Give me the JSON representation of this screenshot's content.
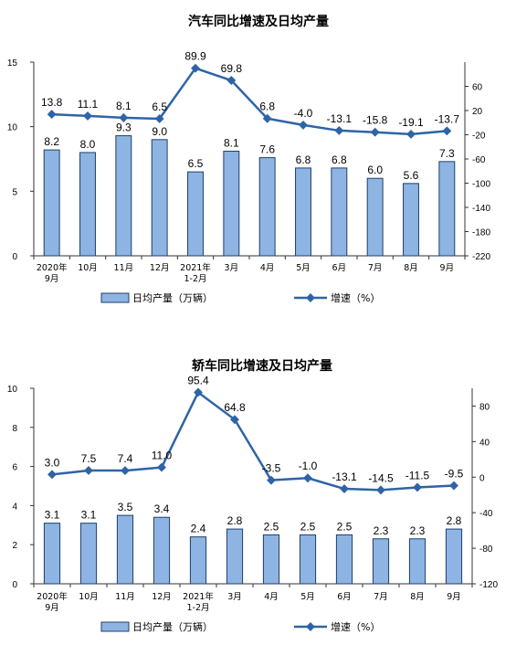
{
  "colors": {
    "bar_fill": "#8DB4E2",
    "bar_stroke": "#1F3F6A",
    "line": "#2E64A6",
    "axis": "#333333"
  },
  "chart_data": [
    {
      "type": "bar+line",
      "title": "汽车同比增速及日均产量",
      "categories": [
        "2020年\n9月",
        "10月",
        "11月",
        "12月",
        "2021年\n1-2月",
        "3月",
        "4月",
        "5月",
        "6月",
        "7月",
        "8月",
        "9月"
      ],
      "series": [
        {
          "name": "日均产量（万辆）",
          "type": "bar",
          "axis": "left",
          "values": [
            8.2,
            8.0,
            9.3,
            9.0,
            6.5,
            8.1,
            7.6,
            6.8,
            6.8,
            6.0,
            5.6,
            7.3
          ]
        },
        {
          "name": "增速（%）",
          "type": "line",
          "axis": "right",
          "values": [
            13.8,
            11.1,
            8.1,
            6.5,
            89.9,
            69.8,
            6.8,
            -4.0,
            -13.1,
            -15.8,
            -19.1,
            -13.7
          ]
        }
      ],
      "y_left": {
        "min": 0,
        "max": 15,
        "ticks": [
          "0",
          "5",
          "10",
          "15"
        ]
      },
      "y_right": {
        "min": -220,
        "max": 100,
        "ticks": [
          "60",
          "20",
          "-20",
          "-60",
          "-100",
          "-140",
          "-180",
          "-220"
        ]
      },
      "bar_labels": [
        "8.2",
        "8.0",
        "9.3",
        "9.0",
        "6.5",
        "8.1",
        "7.6",
        "6.8",
        "6.8",
        "6.0",
        "5.6",
        "7.3"
      ],
      "line_labels": [
        "13.8",
        "11.1",
        "8.1",
        "6.5",
        "89.9",
        "69.8",
        "6.8",
        "-4.0",
        "-13.1",
        "-15.8",
        "-19.1",
        "-13.7"
      ],
      "legend": [
        "日均产量（万辆）",
        "增速（%）"
      ],
      "legend_position": "bottom"
    },
    {
      "type": "bar+line",
      "title": "轿车同比增速及日均产量",
      "categories": [
        "2020年\n9月",
        "10月",
        "11月",
        "12月",
        "2021年\n1-2月",
        "3月",
        "4月",
        "5月",
        "6月",
        "7月",
        "8月",
        "9月"
      ],
      "series": [
        {
          "name": "日均产量（万辆）",
          "type": "bar",
          "axis": "left",
          "values": [
            3.1,
            3.1,
            3.5,
            3.4,
            2.4,
            2.8,
            2.5,
            2.5,
            2.5,
            2.3,
            2.3,
            2.8
          ]
        },
        {
          "name": "增速（%）",
          "type": "line",
          "axis": "right",
          "values": [
            3.0,
            7.5,
            7.4,
            11.0,
            95.4,
            64.8,
            -3.5,
            -1.0,
            -13.1,
            -14.5,
            -11.5,
            -9.5
          ]
        }
      ],
      "y_left": {
        "min": 0,
        "max": 10,
        "ticks": [
          "0",
          "2",
          "4",
          "6",
          "8",
          "10"
        ]
      },
      "y_right": {
        "min": -120,
        "max": 100,
        "ticks": [
          "80",
          "40",
          "0",
          "-40",
          "-80",
          "-120"
        ]
      },
      "bar_labels": [
        "3.1",
        "3.1",
        "3.5",
        "3.4",
        "2.4",
        "2.8",
        "2.5",
        "2.5",
        "2.5",
        "2.3",
        "2.3",
        "2.8"
      ],
      "line_labels": [
        "3.0",
        "7.5",
        "7.4",
        "11.0",
        "95.4",
        "64.8",
        "-3.5",
        "-1.0",
        "-13.1",
        "-14.5",
        "-11.5",
        "-9.5"
      ],
      "legend": [
        "日均产量（万辆）",
        "增速（%）"
      ],
      "legend_position": "bottom"
    }
  ]
}
